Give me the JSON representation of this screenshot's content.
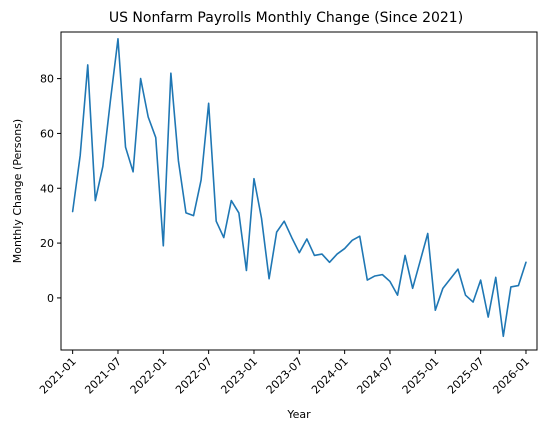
{
  "chart_data": {
    "type": "line",
    "title": "US Nonfarm Payrolls Monthly Change (Since 2021)",
    "xlabel": "Year",
    "ylabel": "Monthly Change (Persons)",
    "x_tick_labels": [
      "2021-01",
      "2021-07",
      "2022-01",
      "2022-07",
      "2023-01",
      "2023-07",
      "2024-01",
      "2024-07",
      "2025-01",
      "2025-07",
      "2026-01"
    ],
    "y_ticks": [
      0,
      20,
      40,
      60,
      80
    ],
    "xlim": [
      "2020-11-15",
      "2026-02-15"
    ],
    "ylim": [
      -19,
      97
    ],
    "grid": false,
    "legend": "none",
    "series": [
      {
        "color": "#1f77b4",
        "x": [
          "2021-01",
          "2021-02",
          "2021-03",
          "2021-04",
          "2021-05",
          "2021-06",
          "2021-07",
          "2021-08",
          "2021-09",
          "2021-10",
          "2021-11",
          "2021-12",
          "2022-01",
          "2022-02",
          "2022-03",
          "2022-04",
          "2022-05",
          "2022-06",
          "2022-07",
          "2022-08",
          "2022-09",
          "2022-10",
          "2022-11",
          "2022-12",
          "2023-01",
          "2023-02",
          "2023-03",
          "2023-04",
          "2023-05",
          "2023-06",
          "2023-07",
          "2023-08",
          "2023-09",
          "2023-10",
          "2023-11",
          "2023-12",
          "2024-01",
          "2024-02",
          "2024-03",
          "2024-04",
          "2024-05",
          "2024-06",
          "2024-07",
          "2024-08",
          "2024-09",
          "2024-10",
          "2024-11",
          "2024-12",
          "2025-01",
          "2025-02",
          "2025-03",
          "2025-04",
          "2025-05",
          "2025-06",
          "2025-07",
          "2025-08",
          "2025-09",
          "2025-10",
          "2025-11",
          "2025-12",
          "2026-01"
        ],
        "values": [
          31.5,
          52,
          85,
          35.5,
          48,
          72,
          94.5,
          55,
          46,
          80,
          66,
          58.5,
          19,
          82,
          50,
          31,
          30,
          43,
          71,
          28,
          22,
          35.5,
          31,
          10,
          43.5,
          29,
          7,
          24,
          28,
          22,
          16.5,
          21.5,
          15.5,
          16,
          13,
          16,
          18,
          21,
          22.5,
          6.5,
          8,
          8.5,
          6,
          1,
          15.5,
          3.5,
          13.5,
          23.5,
          -4.5,
          3.5,
          7,
          10.5,
          1,
          -1.5,
          6.5,
          -7,
          7.5,
          -14,
          4,
          4.5,
          13
        ]
      }
    ]
  }
}
